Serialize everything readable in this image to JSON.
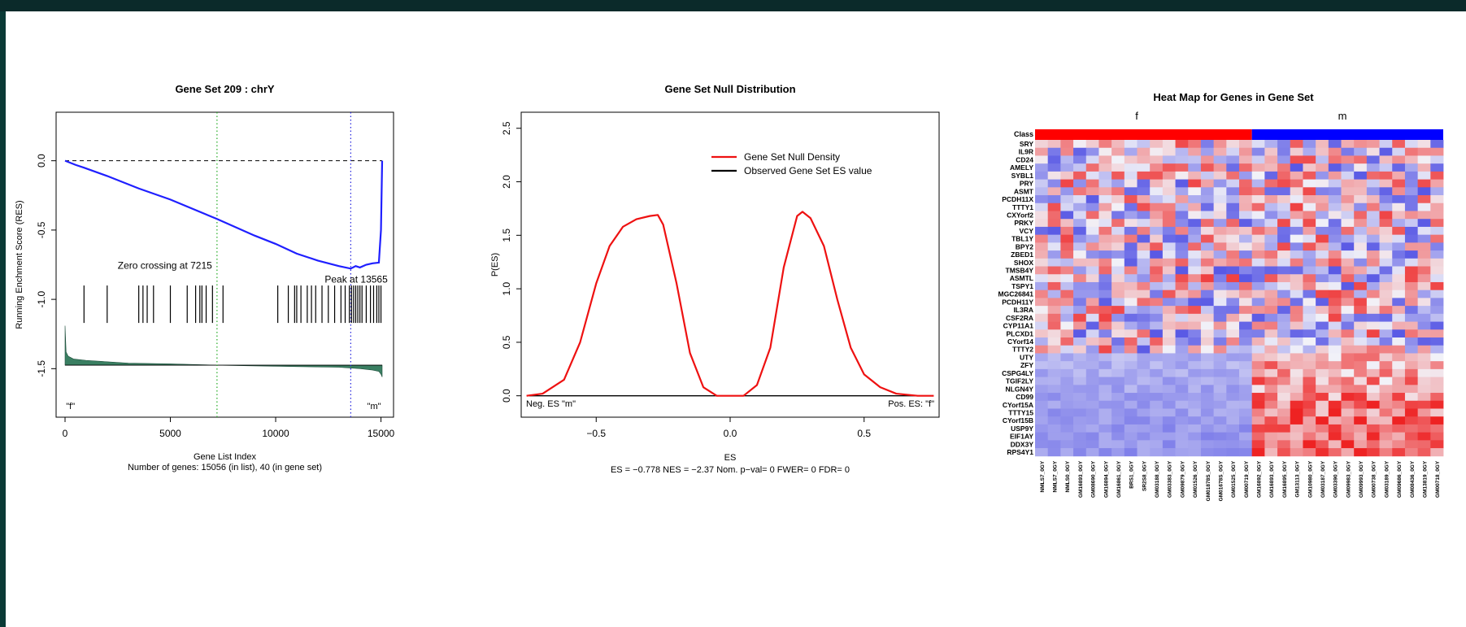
{
  "chart_data": [
    {
      "type": "line",
      "title": "Gene Set  209 : chrY",
      "xlabel": "Gene List Index",
      "subtitle": "Number of genes: 15056 (in list), 40 (in gene set)",
      "ylabel": "Running Enchment Score (RES)",
      "xlim": [
        0,
        15056
      ],
      "ylim": [
        -1.85,
        0.35
      ],
      "x_ticks": [
        "0",
        "5000",
        "10000",
        "15000"
      ],
      "y_ticks": [
        "0.0",
        "-0.5",
        "-1.0",
        "-1.5"
      ],
      "annotations": {
        "zero_crossing": "Zero crossing at 7215",
        "peak": "Peak at 13565",
        "left_class": "\"f\"",
        "right_class": "\"m\""
      },
      "zero_crossing_x": 7215,
      "peak_x": 13565,
      "series": [
        {
          "x": [
            0,
            500,
            900,
            2000,
            3500,
            5000,
            7215,
            9000,
            10000,
            11000,
            12000,
            13000,
            13565,
            13800,
            14000,
            14300,
            14600,
            14900,
            15000,
            15056
          ],
          "y": [
            0.0,
            -0.03,
            -0.05,
            -0.11,
            -0.2,
            -0.28,
            -0.42,
            -0.54,
            -0.6,
            -0.67,
            -0.72,
            -0.76,
            -0.778,
            -0.76,
            -0.77,
            -0.75,
            -0.74,
            -0.735,
            -0.5,
            0.0
          ]
        }
      ],
      "hits": [
        900,
        2000,
        3500,
        3700,
        3900,
        4200,
        5000,
        5800,
        6200,
        6400,
        6500,
        6700,
        7000,
        7500,
        10100,
        10600,
        10900,
        11000,
        11200,
        11500,
        11700,
        11900,
        12200,
        12500,
        12800,
        13100,
        13300,
        13500,
        13600,
        13700,
        13800,
        13900,
        14000,
        14100,
        14300,
        14500,
        14650,
        14800,
        14900,
        15000
      ],
      "metric": {
        "x": [
          0,
          50,
          150,
          400,
          1000,
          3000,
          5000,
          7215,
          9000,
          11000,
          13000,
          14000,
          14600,
          14900,
          15000,
          15056
        ],
        "y": [
          -1.19,
          -1.38,
          -1.41,
          -1.43,
          -1.44,
          -1.46,
          -1.465,
          -1.475,
          -1.48,
          -1.485,
          -1.49,
          -1.5,
          -1.51,
          -1.52,
          -1.54,
          -1.56
        ]
      },
      "colors": {
        "res": "#1f1fff",
        "metric_fill": "#3a7f62",
        "zero_line": "#000000",
        "zero_cross_line": "#22aa22",
        "peak_line": "#2222dd"
      }
    },
    {
      "type": "line",
      "title": "Gene Set Null Distribution",
      "xlabel": "ES",
      "subtitle": "ES = −0.778  NES = −2.37 Nom. p−val= 0 FWER= 0 FDR= 0",
      "ylabel": "P(ES)",
      "xlim": [
        -0.78,
        0.78
      ],
      "ylim": [
        -0.2,
        2.65
      ],
      "x_ticks": [
        "−0.5",
        "0.0",
        "0.5"
      ],
      "y_ticks": [
        "0.0",
        "0.5",
        "1.0",
        "1.5",
        "2.0",
        "2.5"
      ],
      "legend": [
        "Gene Set Null Density",
        "Observed Gene Set ES value"
      ],
      "annotations": {
        "left": "Neg. ES \"m\"",
        "right": "Pos. ES: \"f\""
      },
      "series": [
        {
          "name": "Gene Set Null Density",
          "x": [
            -0.76,
            -0.7,
            -0.62,
            -0.56,
            -0.5,
            -0.45,
            -0.4,
            -0.35,
            -0.3,
            -0.27,
            -0.25,
            -0.2,
            -0.15,
            -0.1,
            -0.05,
            0.0,
            0.05,
            0.1,
            0.15,
            0.2,
            0.25,
            0.27,
            0.3,
            0.35,
            0.4,
            0.45,
            0.5,
            0.56,
            0.62,
            0.7,
            0.76
          ],
          "y": [
            0.0,
            0.02,
            0.15,
            0.5,
            1.05,
            1.4,
            1.58,
            1.65,
            1.68,
            1.69,
            1.6,
            1.05,
            0.4,
            0.08,
            0.0,
            0.0,
            0.0,
            0.1,
            0.45,
            1.2,
            1.68,
            1.72,
            1.66,
            1.4,
            0.9,
            0.45,
            0.2,
            0.08,
            0.02,
            0.0,
            0.0
          ]
        }
      ],
      "colors": {
        "density": "#ee1111",
        "observed": "#000000"
      }
    },
    {
      "type": "heatmap",
      "title": "Heat Map for Genes in Gene Set",
      "class_label": "Class",
      "classes": [
        {
          "name": "f",
          "color": "#ff0000"
        },
        {
          "name": "m",
          "color": "#0000ff"
        }
      ],
      "genes": [
        "SRY",
        "IL9R",
        "CD24",
        "AMELY",
        "SYBL1",
        "PRY",
        "ASMT",
        "PCDH11X",
        "TTTY1",
        "CXYorf2",
        "PRKY",
        "VCY",
        "TBL1Y",
        "BPY2",
        "ZBED1",
        "SHOX",
        "TMSB4Y",
        "ASMTL",
        "TSPY1",
        "MGC26841",
        "PCDH11Y",
        "IL3RA",
        "CSF2RA",
        "CYP11A1",
        "PLCXD1",
        "CYorf14",
        "TTTY2",
        "UTY",
        "ZFY",
        "CSPG4LY",
        "TGIF2LY",
        "NLGN4Y",
        "CD99",
        "CYorf15A",
        "TTTY15",
        "CYorf15B",
        "USP9Y",
        "EIF1AY",
        "DDX3Y",
        "RPS4Y1"
      ],
      "samples": [
        "NMLS7_0GY",
        "NMLS7_0GY",
        "NMLS0_0GY",
        "GM16893_0GY",
        "GM08690_0GY",
        "GM16894_0GY",
        "GM16861_0GY",
        "BRS1_0GY",
        "SR2S8_0GY",
        "GM03188_0GY",
        "GM03383_0GY",
        "GM09879_0GY",
        "GM01526_0GY",
        "GM01878S_0GY",
        "GM01678S_0GY",
        "GM01525_0GY",
        "GM00719_0GY",
        "GM16892_0GY",
        "GM16893_0GY",
        "GM16895_0GY",
        "GM13113_0GY",
        "GM10980_0GY",
        "GM03187_0GY",
        "GM03390_0GY",
        "GM09983_0GY",
        "GM09993_0GY",
        "GM00738_0GY",
        "GM03189_0GY",
        "GM09686_0GY",
        "GM08436_0GY",
        "GM13819_0GY",
        "GM00718_0GY"
      ],
      "n_female": 17,
      "colors": {
        "low": "#3333dd",
        "mid": "#f2f2f8",
        "high": "#ee2222"
      }
    }
  ]
}
